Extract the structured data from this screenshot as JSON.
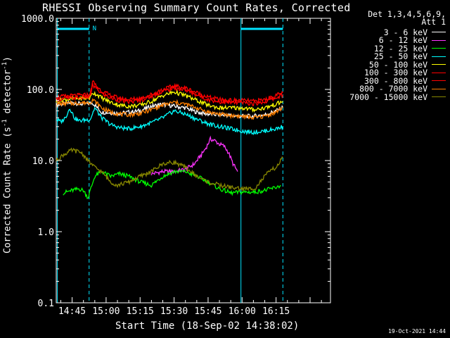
{
  "chart_data": {
    "type": "line",
    "title": "RHESSI Observing Summary Count Rates, Corrected",
    "xlabel": "Start Time (18-Sep-02 14:38:02)",
    "ylabel_main": "Corrected Count Rate (s",
    "ylabel_sup1": "-1",
    "ylabel_mid": " detector",
    "ylabel_sup2": "-1",
    "ylabel_end": ")",
    "yscale": "log",
    "ylim": [
      0.1,
      1000
    ],
    "xlim_minutes": [
      38,
      159
    ],
    "x_ticks": [
      {
        "minute": 45,
        "label": "14:45"
      },
      {
        "minute": 60,
        "label": "15:00"
      },
      {
        "minute": 75,
        "label": "15:15"
      },
      {
        "minute": 90,
        "label": "15:30"
      },
      {
        "minute": 105,
        "label": "15:45"
      },
      {
        "minute": 120,
        "label": "16:00"
      },
      {
        "minute": 135,
        "label": "16:15"
      }
    ],
    "y_ticks": [
      {
        "value": 1000,
        "label": "1000.0"
      },
      {
        "value": 100,
        "label": "100.0"
      },
      {
        "value": 10,
        "label": "10.0"
      },
      {
        "value": 1,
        "label": "1.0"
      },
      {
        "value": 0.1,
        "label": "0.1"
      }
    ],
    "legend_header": [
      "Det 1,3,4,5,6,9,",
      "Att 1"
    ],
    "grid": false,
    "legend_position": "top-right",
    "series": [
      {
        "name": "3 - 6 keV",
        "color": "#ffffff",
        "x": [
          38,
          45,
          50,
          52,
          54,
          58,
          62,
          66,
          70,
          75,
          80,
          85,
          90,
          95,
          100,
          105,
          110,
          115,
          120,
          125,
          130,
          135,
          138
        ],
        "y": [
          60,
          65,
          62,
          63,
          65,
          48,
          47,
          46,
          48,
          50,
          58,
          62,
          58,
          55,
          48,
          45,
          44,
          43,
          42,
          42,
          44,
          50,
          56
        ]
      },
      {
        "name": "6 - 12 keV",
        "color": "#ff33ff",
        "x": [
          80,
          85,
          90,
          95,
          99,
          102,
          104,
          106,
          108,
          110,
          112,
          114,
          116,
          118
        ],
        "y": [
          6.5,
          7,
          7,
          7.5,
          9,
          12,
          15,
          20,
          19,
          17,
          16,
          13,
          9,
          7
        ]
      },
      {
        "name": "12 - 25 keV",
        "color": "#00ff00",
        "x": [
          41,
          45,
          48,
          50,
          52,
          55,
          58,
          62,
          66,
          70,
          75,
          80,
          85,
          90,
          95,
          100,
          105,
          110,
          115,
          120,
          125,
          130,
          135,
          137
        ],
        "y": [
          3.5,
          3.8,
          4,
          3.8,
          3,
          6,
          7,
          6,
          6.5,
          6,
          5,
          4.5,
          6,
          7,
          7,
          6,
          5,
          4,
          3.5,
          3.6,
          3.6,
          3.8,
          4.2,
          4.5
        ]
      },
      {
        "name": "25 - 50 keV",
        "color": "#00ffff",
        "x": [
          38,
          40,
          42,
          44,
          46,
          48,
          50,
          53,
          55,
          58,
          62,
          66,
          70,
          75,
          80,
          85,
          90,
          95,
          100,
          105,
          110,
          115,
          120,
          125,
          130,
          135,
          138
        ],
        "y": [
          38,
          35,
          40,
          55,
          40,
          36,
          37,
          38,
          55,
          40,
          32,
          29,
          28,
          30,
          34,
          40,
          50,
          45,
          38,
          33,
          30,
          28,
          26,
          25,
          26,
          28,
          30
        ]
      },
      {
        "name": "50 - 100 keV",
        "color": "#ffff00",
        "x": [
          38,
          42,
          46,
          50,
          53,
          54,
          56,
          58,
          62,
          66,
          70,
          75,
          80,
          85,
          90,
          95,
          100,
          105,
          110,
          115,
          120,
          125,
          130,
          135,
          138
        ],
        "y": [
          68,
          72,
          74,
          75,
          76,
          90,
          85,
          76,
          66,
          60,
          58,
          60,
          68,
          82,
          92,
          82,
          70,
          60,
          55,
          55,
          55,
          52,
          55,
          62,
          68
        ]
      },
      {
        "name": "100 - 300 keV",
        "color": "#ff0000",
        "x": [
          38,
          42,
          46,
          50,
          53,
          54,
          56,
          58,
          62,
          66,
          70,
          75,
          80,
          85,
          90,
          95,
          100,
          105,
          110,
          115,
          120,
          125,
          130,
          135,
          138
        ],
        "y": [
          78,
          80,
          82,
          83,
          85,
          130,
          110,
          95,
          82,
          75,
          72,
          75,
          85,
          100,
          112,
          105,
          90,
          78,
          72,
          70,
          70,
          68,
          72,
          82,
          90
        ]
      },
      {
        "name": "300 - 800 keV",
        "color": "#ff0000",
        "x": [
          38,
          42,
          46,
          50,
          53,
          54,
          56,
          58,
          62,
          66,
          70,
          75,
          80,
          85,
          90,
          95,
          100,
          105,
          110,
          115,
          120,
          125,
          130,
          135,
          138
        ],
        "y": [
          72,
          75,
          76,
          77,
          79,
          115,
          100,
          88,
          76,
          70,
          67,
          70,
          80,
          94,
          105,
          98,
          84,
          72,
          67,
          65,
          65,
          63,
          67,
          76,
          84
        ]
      },
      {
        "name": "800 - 7000 keV",
        "color": "#ff8000",
        "x": [
          38,
          42,
          46,
          50,
          53,
          54,
          56,
          58,
          62,
          66,
          70,
          75,
          80,
          85,
          90,
          95,
          100,
          105,
          110,
          115,
          120,
          125,
          130,
          135,
          138
        ],
        "y": [
          62,
          63,
          64,
          65,
          66,
          72,
          64,
          55,
          48,
          45,
          44,
          46,
          52,
          60,
          66,
          62,
          55,
          48,
          45,
          43,
          42,
          40,
          42,
          48,
          56
        ]
      },
      {
        "name": "7000 - 15000 keV",
        "color": "#888800",
        "x": [
          38,
          41,
          45,
          49,
          52,
          55,
          58,
          62,
          65,
          70,
          75,
          80,
          85,
          90,
          95,
          100,
          105,
          110,
          115,
          120,
          124,
          126,
          128,
          130,
          132,
          135,
          138
        ],
        "y": [
          10,
          12,
          14,
          13,
          10,
          8,
          7,
          5,
          4.5,
          5,
          6,
          7,
          9,
          9.5,
          8,
          6,
          5,
          4.5,
          4.2,
          4,
          4,
          4.2,
          5,
          6,
          7,
          8,
          11
        ]
      }
    ]
  },
  "overlays": {
    "flag_label": "N"
  },
  "legend": {
    "header_line1": "Det 1,3,4,5,6,9,",
    "header_line2": "Att 1"
  },
  "timestamp": "19-Oct-2021 14:44"
}
